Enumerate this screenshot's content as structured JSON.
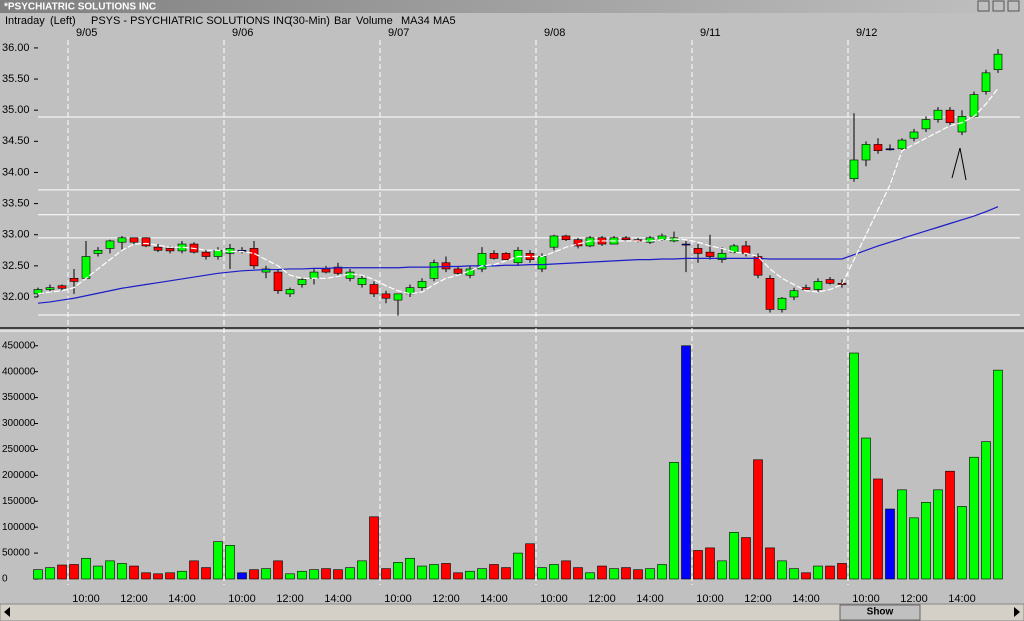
{
  "window": {
    "title": "*PSYCHIATRIC SOLUTIONS INC",
    "header": [
      "Intraday",
      "(Left)",
      "PSYS - PSYCHIATRIC SOLUTIONS INC",
      "(30-Min)",
      "Bar"
    ],
    "scroll_button": "Show"
  },
  "chart_data": [
    {
      "type": "candlestick",
      "day_labels": [
        {
          "index": 3,
          "label": "9/05"
        },
        {
          "index": 16,
          "label": "9/06"
        },
        {
          "index": 29,
          "label": "9/07"
        },
        {
          "index": 42,
          "label": "9/08"
        },
        {
          "index": 55,
          "label": "9/11"
        },
        {
          "index": 68,
          "label": "9/12"
        }
      ],
      "open": [
        32.05,
        32.12,
        32.18,
        32.3,
        32.3,
        32.7,
        32.78,
        32.88,
        32.95,
        32.95,
        32.8,
        32.78,
        32.74,
        32.85,
        32.72,
        32.65,
        32.7,
        32.75,
        32.78,
        32.4,
        32.4,
        32.05,
        32.2,
        32.3,
        32.45,
        32.48,
        32.3,
        32.2,
        32.2,
        32.05,
        31.95,
        32.05,
        32.15,
        32.3,
        32.55,
        32.45,
        32.35,
        32.45,
        32.7,
        32.7,
        32.55,
        32.7,
        32.45,
        32.8,
        32.98,
        32.92,
        32.82,
        32.95,
        32.85,
        32.95,
        32.92,
        32.88,
        32.92,
        32.9,
        32.85,
        32.78,
        32.72,
        32.6,
        32.72,
        32.82,
        32.65,
        32.3,
        31.8,
        32.0,
        32.15,
        32.12,
        32.28,
        32.22,
        33.9,
        34.2,
        34.45,
        34.38,
        34.38,
        34.55,
        34.7,
        34.85,
        35.0,
        34.65,
        34.9,
        35.3,
        35.65
      ],
      "high": [
        32.15,
        32.2,
        32.2,
        32.45,
        32.9,
        32.8,
        32.92,
        32.98,
        32.95,
        32.96,
        32.85,
        32.82,
        32.9,
        32.88,
        32.75,
        32.8,
        32.85,
        32.8,
        32.9,
        32.5,
        32.45,
        32.15,
        32.3,
        32.45,
        32.5,
        32.55,
        32.45,
        32.35,
        32.25,
        32.1,
        32.05,
        32.2,
        32.3,
        32.6,
        32.65,
        32.5,
        32.5,
        32.8,
        32.75,
        32.72,
        32.8,
        32.75,
        32.7,
        33.0,
        33.0,
        32.95,
        32.98,
        32.98,
        32.98,
        32.98,
        32.95,
        32.98,
        33.02,
        33.05,
        32.9,
        32.85,
        33.0,
        32.8,
        32.85,
        32.9,
        32.7,
        32.35,
        32.0,
        32.15,
        32.2,
        32.3,
        32.32,
        32.28,
        34.95,
        34.5,
        34.55,
        34.45,
        34.55,
        34.7,
        34.9,
        35.05,
        35.05,
        35.0,
        35.3,
        35.65,
        35.98
      ],
      "low": [
        32.0,
        32.08,
        32.1,
        32.05,
        32.3,
        32.65,
        32.7,
        32.75,
        32.85,
        32.8,
        32.72,
        32.7,
        32.7,
        32.7,
        32.6,
        32.6,
        32.45,
        32.7,
        32.45,
        32.3,
        32.05,
        32.0,
        32.15,
        32.2,
        32.38,
        32.35,
        32.25,
        32.15,
        32.0,
        31.9,
        31.7,
        32.0,
        32.1,
        32.25,
        32.4,
        32.35,
        32.3,
        32.4,
        32.6,
        32.58,
        32.5,
        32.55,
        32.4,
        32.75,
        32.9,
        32.78,
        32.8,
        32.82,
        32.85,
        32.9,
        32.88,
        32.85,
        32.9,
        32.88,
        32.4,
        32.55,
        32.6,
        32.55,
        32.7,
        32.65,
        32.3,
        31.75,
        31.75,
        31.95,
        32.1,
        32.08,
        32.2,
        32.15,
        33.85,
        34.1,
        34.3,
        34.35,
        34.35,
        34.5,
        34.65,
        34.8,
        34.75,
        34.6,
        34.88,
        35.25,
        35.6
      ],
      "close": [
        32.12,
        32.15,
        32.14,
        32.25,
        32.65,
        32.75,
        32.9,
        32.95,
        32.88,
        32.82,
        32.75,
        32.74,
        32.85,
        32.72,
        32.65,
        32.75,
        32.78,
        32.75,
        32.5,
        32.45,
        32.1,
        32.12,
        32.28,
        32.4,
        32.4,
        32.38,
        32.4,
        32.3,
        32.05,
        31.98,
        32.05,
        32.15,
        32.25,
        32.55,
        32.45,
        32.38,
        32.45,
        32.7,
        32.62,
        32.6,
        32.75,
        32.6,
        32.65,
        32.98,
        32.92,
        32.82,
        32.95,
        32.85,
        32.95,
        32.92,
        32.9,
        32.95,
        32.98,
        32.95,
        32.85,
        32.7,
        32.65,
        32.7,
        32.82,
        32.7,
        32.35,
        31.8,
        31.98,
        32.1,
        32.12,
        32.25,
        32.22,
        32.2,
        34.2,
        34.45,
        34.35,
        34.38,
        34.52,
        34.65,
        34.85,
        35.0,
        34.8,
        34.9,
        35.25,
        35.6,
        35.9
      ],
      "up_color": "#00ff00",
      "down_color": "#ff0000",
      "flat_color": "#0000ff",
      "series": [
        {
          "name": "MA34",
          "color": "#1c1cc8",
          "values": [
            31.9,
            31.92,
            31.95,
            31.98,
            32.02,
            32.06,
            32.1,
            32.14,
            32.17,
            32.2,
            32.23,
            32.26,
            32.29,
            32.32,
            32.35,
            32.38,
            32.4,
            32.42,
            32.43,
            32.44,
            32.44,
            32.45,
            32.45,
            32.46,
            32.46,
            32.47,
            32.47,
            32.47,
            32.47,
            32.47,
            32.47,
            32.48,
            32.48,
            32.48,
            32.49,
            32.49,
            32.5,
            32.5,
            32.5,
            32.51,
            32.51,
            32.52,
            32.52,
            32.53,
            32.54,
            32.55,
            32.56,
            32.57,
            32.58,
            32.59,
            32.6,
            32.6,
            32.61,
            32.61,
            32.62,
            32.62,
            32.62,
            32.62,
            32.62,
            32.62,
            32.62,
            32.61,
            32.61,
            32.61,
            32.61,
            32.61,
            32.61,
            32.61,
            32.68,
            32.75,
            32.82,
            32.88,
            32.94,
            33.0,
            33.06,
            33.12,
            33.18,
            33.24,
            33.3,
            33.37,
            33.45
          ]
        },
        {
          "name": "MA5",
          "color": "#ffffff",
          "values": [
            32.05,
            32.08,
            32.1,
            32.15,
            32.3,
            32.45,
            32.6,
            32.75,
            32.85,
            32.86,
            32.83,
            32.8,
            32.8,
            32.78,
            32.75,
            32.75,
            32.73,
            32.73,
            32.7,
            32.6,
            32.5,
            32.35,
            32.3,
            32.3,
            32.3,
            32.33,
            32.37,
            32.35,
            32.28,
            32.18,
            32.1,
            32.05,
            32.08,
            32.2,
            32.3,
            32.35,
            32.42,
            32.5,
            32.52,
            32.58,
            32.65,
            32.65,
            32.65,
            32.72,
            32.8,
            32.85,
            32.9,
            32.9,
            32.9,
            32.9,
            32.9,
            32.9,
            32.92,
            32.93,
            32.92,
            32.88,
            32.82,
            32.78,
            32.72,
            32.7,
            32.65,
            32.45,
            32.3,
            32.2,
            32.1,
            32.08,
            32.12,
            32.2,
            32.6,
            33.0,
            33.4,
            33.8,
            34.35,
            34.45,
            34.55,
            34.65,
            34.75,
            34.8,
            34.9,
            35.1,
            35.35
          ]
        }
      ],
      "hlines": [
        34.89,
        33.72,
        33.32,
        32.95,
        31.71
      ],
      "ylim": [
        31.55,
        36.32
      ],
      "yticks": [
        {
          "value": 32,
          "label": "32.00"
        },
        {
          "value": 32.5,
          "label": "32.50"
        },
        {
          "value": 33,
          "label": "33.00"
        },
        {
          "value": 33.5,
          "label": "33.50"
        },
        {
          "value": 34,
          "label": "34.00"
        },
        {
          "value": 34.5,
          "label": "34.50"
        },
        {
          "value": 35,
          "label": "35.00"
        },
        {
          "value": 35.5,
          "label": "35.50"
        },
        {
          "value": 36,
          "label": "36.00"
        }
      ]
    },
    {
      "type": "bar",
      "name": "Volume",
      "legend_color": "#0000ff",
      "time_labels": [
        {
          "index": 4,
          "label": "10:00"
        },
        {
          "index": 8,
          "label": "12:00"
        },
        {
          "index": 12,
          "label": "14:00"
        },
        {
          "index": 17,
          "label": "10:00"
        },
        {
          "index": 21,
          "label": "12:00"
        },
        {
          "index": 25,
          "label": "14:00"
        },
        {
          "index": 30,
          "label": "10:00"
        },
        {
          "index": 34,
          "label": "12:00"
        },
        {
          "index": 38,
          "label": "14:00"
        },
        {
          "index": 43,
          "label": "10:00"
        },
        {
          "index": 47,
          "label": "12:00"
        },
        {
          "index": 51,
          "label": "14:00"
        },
        {
          "index": 56,
          "label": "10:00"
        },
        {
          "index": 60,
          "label": "12:00"
        },
        {
          "index": 64,
          "label": "14:00"
        },
        {
          "index": 69,
          "label": "10:00"
        },
        {
          "index": 73,
          "label": "12:00"
        },
        {
          "index": 77,
          "label": "14:00"
        }
      ],
      "values": [
        18000,
        22000,
        27000,
        28000,
        40000,
        25000,
        35000,
        30000,
        25000,
        12000,
        10000,
        12000,
        15000,
        35000,
        22000,
        72000,
        65000,
        12000,
        18000,
        20000,
        35000,
        10000,
        15000,
        18000,
        20000,
        18000,
        22000,
        35000,
        120000,
        20000,
        32000,
        40000,
        25000,
        28000,
        30000,
        12000,
        15000,
        20000,
        28000,
        22000,
        50000,
        68000,
        22000,
        28000,
        35000,
        22000,
        12000,
        25000,
        20000,
        22000,
        18000,
        20000,
        28000,
        225000,
        450000,
        55000,
        60000,
        35000,
        90000,
        80000,
        230000,
        60000,
        35000,
        20000,
        12000,
        25000,
        25000,
        30000,
        436000,
        272000,
        193000,
        135000,
        172000,
        118000,
        148000,
        172000,
        208000,
        140000,
        235000,
        265000,
        403000
      ],
      "ylim": [
        0,
        465000
      ],
      "yticks": [
        0,
        50000,
        100000,
        150000,
        200000,
        250000,
        300000,
        350000,
        400000,
        450000
      ]
    }
  ]
}
